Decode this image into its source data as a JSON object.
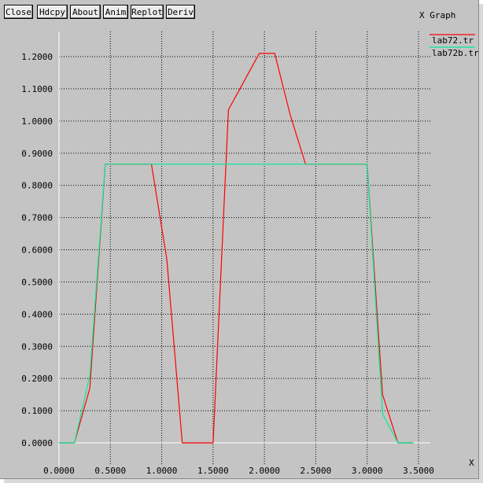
{
  "window": {
    "title": "X Graph",
    "buttons": [
      "Close",
      "Hdcpy",
      "About",
      "Anim",
      "Replot",
      "Deriv"
    ]
  },
  "colors": {
    "background": "#c4c4c4",
    "axis": "#ffffff",
    "grid": "#000000",
    "series_red": "#ff0000",
    "series_green": "#00ee99"
  },
  "chart_data": {
    "type": "line",
    "title": "",
    "xlabel": "X",
    "ylabel": "",
    "xlim": [
      0,
      3.5
    ],
    "ylim": [
      0,
      1.2
    ],
    "x_ticks": [
      "0.0000",
      "0.5000",
      "1.0000",
      "1.5000",
      "2.0000",
      "2.5000",
      "3.0000",
      "3.5000"
    ],
    "y_ticks": [
      "0.0000",
      "0.1000",
      "0.2000",
      "0.3000",
      "0.4000",
      "0.5000",
      "0.6000",
      "0.7000",
      "0.8000",
      "0.9000",
      "1.0000",
      "1.1000",
      "1.2000"
    ],
    "grid": true,
    "legend_position": "top-right",
    "series": [
      {
        "name": "lab72.tr",
        "color": "#ff0000",
        "points": [
          [
            0,
            0
          ],
          [
            0.15,
            0
          ],
          [
            0.3,
            0.17
          ],
          [
            0.45,
            0.866
          ],
          [
            0.9,
            0.866
          ],
          [
            1.05,
            0.57
          ],
          [
            1.2,
            0
          ],
          [
            1.5,
            0
          ],
          [
            1.65,
            1.035
          ],
          [
            1.95,
            1.21
          ],
          [
            2.1,
            1.21
          ],
          [
            2.25,
            1.02
          ],
          [
            2.4,
            0.866
          ],
          [
            3.0,
            0.866
          ],
          [
            3.15,
            0.15
          ],
          [
            3.3,
            0
          ],
          [
            3.45,
            0
          ]
        ]
      },
      {
        "name": "lab72b.tr",
        "color": "#00ee99",
        "points": [
          [
            0,
            0
          ],
          [
            0.15,
            0
          ],
          [
            0.3,
            0.21
          ],
          [
            0.45,
            0.866
          ],
          [
            3.0,
            0.866
          ],
          [
            3.15,
            0.09
          ],
          [
            3.3,
            0
          ],
          [
            3.45,
            0
          ]
        ]
      }
    ]
  }
}
